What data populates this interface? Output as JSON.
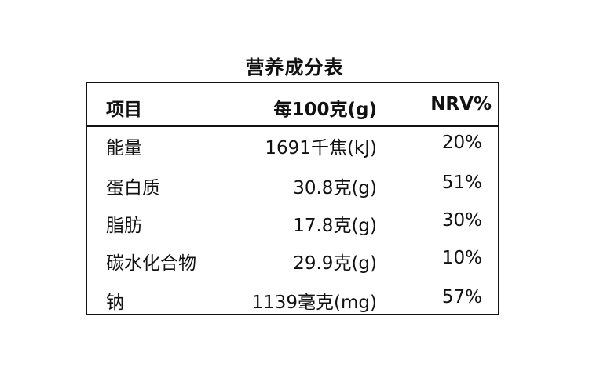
{
  "title": "营养成分表",
  "table": {
    "headers": {
      "item": "项目",
      "per100": "每100克(g)",
      "nrv": "NRV%"
    },
    "rows": [
      {
        "item": "能量",
        "per100": "1691千焦(kJ)",
        "nrv": "20%"
      },
      {
        "item": "蛋白质",
        "per100": "30.8克(g)",
        "nrv": "51%"
      },
      {
        "item": "脂肪",
        "per100": "17.8克(g)",
        "nrv": "30%"
      },
      {
        "item": "碳水化合物",
        "per100": "29.9克(g)",
        "nrv": "10%"
      },
      {
        "item": "钠",
        "per100": "1139毫克(mg)",
        "nrv": "57%"
      }
    ]
  }
}
